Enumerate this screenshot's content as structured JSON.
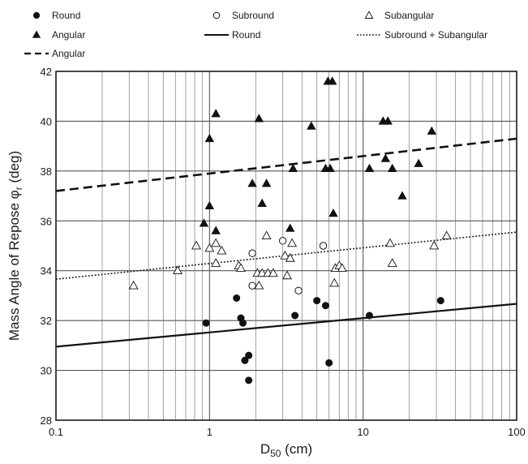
{
  "chart_data": {
    "type": "scatter",
    "xlabel_main": "D",
    "xlabel_sub": "50",
    "xlabel_unit": " (cm)",
    "ylabel_main": "Mass Angle of Repose ",
    "ylabel_phi": "φ",
    "ylabel_sub": "r",
    "ylabel_unit": " (deg)",
    "x_scale": "log",
    "xlim": [
      0.1,
      100
    ],
    "ylim": [
      28,
      42
    ],
    "x_ticks": [
      0.1,
      1,
      10,
      100
    ],
    "x_tick_labels": [
      "0.1",
      "1",
      "10",
      "100"
    ],
    "y_ticks": [
      28,
      30,
      32,
      34,
      36,
      38,
      40,
      42
    ],
    "y_tick_labels": [
      "28",
      "30",
      "32",
      "34",
      "36",
      "38",
      "40",
      "42"
    ],
    "grid": true,
    "legend_position": "top",
    "series": [
      {
        "name": "Round",
        "marker": "filled-circle",
        "points": [
          [
            0.95,
            31.9
          ],
          [
            1.5,
            32.9
          ],
          [
            1.6,
            32.1
          ],
          [
            1.65,
            31.9
          ],
          [
            1.7,
            30.4
          ],
          [
            1.8,
            30.6
          ],
          [
            1.8,
            29.6
          ],
          [
            3.6,
            32.2
          ],
          [
            5.0,
            32.8
          ],
          [
            5.7,
            32.6
          ],
          [
            6.0,
            30.3
          ],
          [
            11.0,
            32.2
          ],
          [
            32.0,
            32.8
          ]
        ]
      },
      {
        "name": "Subround",
        "marker": "open-circle",
        "points": [
          [
            1.9,
            34.7
          ],
          [
            1.9,
            33.4
          ],
          [
            3.0,
            35.2
          ],
          [
            3.8,
            33.2
          ],
          [
            5.5,
            35.0
          ]
        ]
      },
      {
        "name": "Subangular",
        "marker": "open-triangle",
        "points": [
          [
            0.32,
            33.4
          ],
          [
            0.62,
            34.0
          ],
          [
            0.82,
            35.0
          ],
          [
            1.0,
            34.9
          ],
          [
            1.1,
            35.1
          ],
          [
            1.1,
            34.3
          ],
          [
            1.2,
            34.8
          ],
          [
            1.55,
            34.2
          ],
          [
            1.6,
            34.1
          ],
          [
            2.05,
            33.9
          ],
          [
            2.1,
            33.4
          ],
          [
            2.2,
            33.9
          ],
          [
            2.35,
            35.4
          ],
          [
            2.4,
            33.9
          ],
          [
            2.6,
            33.9
          ],
          [
            3.1,
            34.6
          ],
          [
            3.2,
            33.8
          ],
          [
            3.35,
            34.5
          ],
          [
            3.45,
            35.1
          ],
          [
            6.5,
            33.5
          ],
          [
            6.6,
            34.1
          ],
          [
            7.0,
            34.2
          ],
          [
            7.3,
            34.1
          ],
          [
            15.0,
            35.1
          ],
          [
            15.5,
            34.3
          ],
          [
            29.0,
            35.0
          ],
          [
            35.0,
            35.4
          ]
        ]
      },
      {
        "name": "Angular",
        "marker": "filled-triangle",
        "points": [
          [
            0.92,
            35.9
          ],
          [
            1.0,
            39.3
          ],
          [
            1.0,
            36.6
          ],
          [
            1.1,
            40.3
          ],
          [
            1.1,
            35.6
          ],
          [
            1.9,
            37.5
          ],
          [
            2.1,
            40.1
          ],
          [
            2.2,
            36.7
          ],
          [
            2.35,
            37.5
          ],
          [
            3.35,
            35.7
          ],
          [
            3.5,
            38.1
          ],
          [
            4.6,
            39.8
          ],
          [
            5.7,
            38.1
          ],
          [
            5.9,
            41.6
          ],
          [
            6.1,
            38.1
          ],
          [
            6.3,
            41.6
          ],
          [
            6.4,
            36.3
          ],
          [
            11.0,
            38.1
          ],
          [
            13.5,
            40.0
          ],
          [
            14.0,
            38.5
          ],
          [
            14.5,
            40.0
          ],
          [
            15.5,
            38.1
          ],
          [
            18.0,
            37.0
          ],
          [
            23.0,
            38.3
          ],
          [
            28.0,
            39.6
          ]
        ]
      }
    ],
    "fit_lines": [
      {
        "name": "Round",
        "style": "solid",
        "x": [
          0.1,
          100
        ],
        "y": [
          30.95,
          32.67
        ]
      },
      {
        "name": "Subround + Subangular",
        "style": "dotted",
        "x": [
          0.1,
          100
        ],
        "y": [
          33.66,
          35.55
        ]
      },
      {
        "name": "Angular",
        "style": "dashed",
        "x": [
          0.1,
          100
        ],
        "y": [
          37.2,
          39.3
        ]
      }
    ],
    "legend": [
      {
        "label": "Round",
        "symbol": "filled-circle"
      },
      {
        "label": "Subround",
        "symbol": "open-circle"
      },
      {
        "label": "Subangular",
        "symbol": "open-triangle"
      },
      {
        "label": "Angular",
        "symbol": "filled-triangle"
      },
      {
        "label": "Round",
        "symbol": "solid-line"
      },
      {
        "label": "Subround + Subangular",
        "symbol": "dotted-line"
      },
      {
        "label": "Angular",
        "symbol": "dashed-line"
      }
    ]
  }
}
